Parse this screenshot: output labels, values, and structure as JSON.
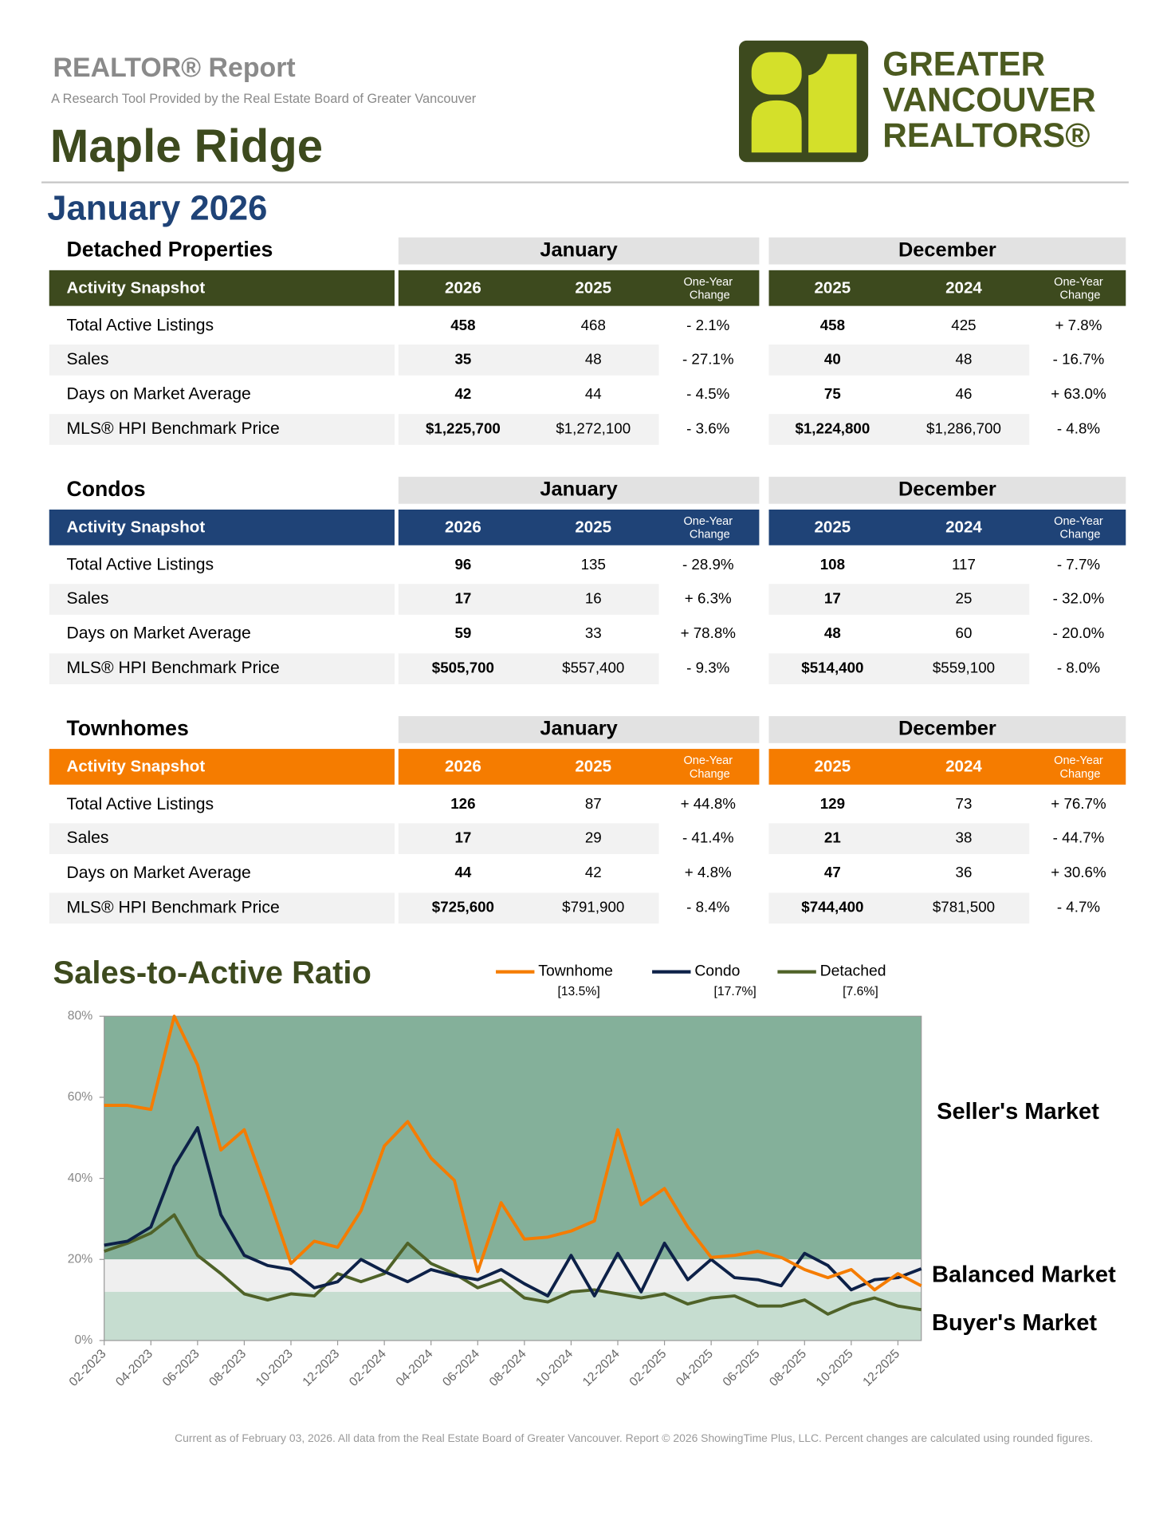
{
  "header": {
    "title": "REALTOR® Report",
    "subtitle": "A Research Tool Provided by the Real Estate Board of Greater Vancouver",
    "area": "Maple Ridge",
    "period": "January 2026"
  },
  "logo": {
    "lines": [
      "GREATER",
      "VANCOUVER",
      "REALTORS®"
    ]
  },
  "tables": [
    {
      "title": "Detached Properties",
      "color": "#3d4a1e",
      "snapshot_label": "Activity Snapshot",
      "groups": [
        {
          "label": "January",
          "columns": [
            "2026",
            "2025",
            "One-Year Change"
          ]
        },
        {
          "label": "December",
          "columns": [
            "2025",
            "2024",
            "One-Year Change"
          ]
        }
      ],
      "rows": [
        {
          "label": "Total Active Listings",
          "cells": [
            "458",
            "468",
            "- 2.1%",
            "458",
            "425",
            "+ 7.8%"
          ]
        },
        {
          "label": "Sales",
          "cells": [
            "35",
            "48",
            "- 27.1%",
            "40",
            "48",
            "- 16.7%"
          ]
        },
        {
          "label": "Days on Market Average",
          "cells": [
            "42",
            "44",
            "- 4.5%",
            "75",
            "46",
            "+ 63.0%"
          ]
        },
        {
          "label": "MLS® HPI Benchmark Price",
          "cells": [
            "$1,225,700",
            "$1,272,100",
            "- 3.6%",
            "$1,224,800",
            "$1,286,700",
            "- 4.8%"
          ]
        }
      ]
    },
    {
      "title": "Condos",
      "color": "#1f4377",
      "snapshot_label": "Activity Snapshot",
      "groups": [
        {
          "label": "January",
          "columns": [
            "2026",
            "2025",
            "One-Year Change"
          ]
        },
        {
          "label": "December",
          "columns": [
            "2025",
            "2024",
            "One-Year Change"
          ]
        }
      ],
      "rows": [
        {
          "label": "Total Active Listings",
          "cells": [
            "96",
            "135",
            "- 28.9%",
            "108",
            "117",
            "- 7.7%"
          ]
        },
        {
          "label": "Sales",
          "cells": [
            "17",
            "16",
            "+ 6.3%",
            "17",
            "25",
            "- 32.0%"
          ]
        },
        {
          "label": "Days on Market Average",
          "cells": [
            "59",
            "33",
            "+ 78.8%",
            "48",
            "60",
            "- 20.0%"
          ]
        },
        {
          "label": "MLS® HPI Benchmark Price",
          "cells": [
            "$505,700",
            "$557,400",
            "- 9.3%",
            "$514,400",
            "$559,100",
            "- 8.0%"
          ]
        }
      ]
    },
    {
      "title": "Townhomes",
      "color": "#f57c00",
      "snapshot_label": "Activity Snapshot",
      "groups": [
        {
          "label": "January",
          "columns": [
            "2026",
            "2025",
            "One-Year Change"
          ]
        },
        {
          "label": "December",
          "columns": [
            "2025",
            "2024",
            "One-Year Change"
          ]
        }
      ],
      "rows": [
        {
          "label": "Total Active Listings",
          "cells": [
            "126",
            "87",
            "+ 44.8%",
            "129",
            "73",
            "+ 76.7%"
          ]
        },
        {
          "label": "Sales",
          "cells": [
            "17",
            "29",
            "- 41.4%",
            "21",
            "38",
            "- 44.7%"
          ]
        },
        {
          "label": "Days on Market Average",
          "cells": [
            "44",
            "42",
            "+ 4.8%",
            "47",
            "36",
            "+ 30.6%"
          ]
        },
        {
          "label": "MLS® HPI Benchmark Price",
          "cells": [
            "$725,600",
            "$791,900",
            "- 8.4%",
            "$744,400",
            "$781,500",
            "- 4.7%"
          ]
        }
      ]
    }
  ],
  "chart_data": {
    "type": "line",
    "title": "Sales-to-Active Ratio",
    "categories": [
      "02-2023",
      null,
      "04-2023",
      null,
      "06-2023",
      null,
      "08-2023",
      null,
      "10-2023",
      null,
      "12-2023",
      null,
      "02-2024",
      null,
      "04-2024",
      null,
      "06-2024",
      null,
      "08-2024",
      null,
      "10-2024",
      null,
      "12-2024",
      null,
      "02-2025",
      null,
      "04-2025",
      null,
      "06-2025",
      null,
      "08-2025",
      null,
      "10-2025",
      null,
      "12-2025",
      null
    ],
    "series": [
      {
        "name": "Townhome",
        "color": "#f57c00",
        "legend_label": "[13.5%]",
        "values": [
          58,
          58,
          57,
          80,
          68,
          47,
          52,
          36,
          19,
          24.5,
          23,
          32,
          48,
          54,
          45,
          39.5,
          17,
          34,
          25,
          25.5,
          27,
          29.5,
          52,
          33.5,
          37.5,
          28,
          20.5,
          21,
          22,
          20.5,
          17.5,
          15.5,
          17.5,
          12.5,
          16.5,
          13.5
        ]
      },
      {
        "name": "Condo",
        "color": "#0d2148",
        "legend_label": "[17.7%]",
        "values": [
          23.5,
          24.5,
          28,
          43,
          52.5,
          31,
          21,
          18.5,
          17.5,
          13,
          14.5,
          20,
          17,
          14.5,
          17.5,
          16,
          15,
          17.5,
          14,
          11,
          21,
          11,
          21.5,
          12,
          24,
          15,
          20,
          15.5,
          15,
          13.5,
          21.5,
          18.5,
          12.5,
          15,
          15.5,
          17.7
        ]
      },
      {
        "name": "Detached",
        "color": "#4f6228",
        "legend_label": "[7.6%]",
        "values": [
          22,
          24,
          26.5,
          31,
          21,
          16.5,
          11.5,
          10,
          11.5,
          11,
          16.5,
          14.5,
          16.5,
          24,
          19,
          16.5,
          13,
          15,
          10.5,
          9.5,
          12,
          12.5,
          11.5,
          10.5,
          11.5,
          9,
          10.5,
          11,
          8.5,
          8.5,
          10,
          6.5,
          9,
          10.5,
          8.5,
          7.6
        ]
      }
    ],
    "ylim": [
      0,
      80
    ],
    "yticks": [
      {
        "value": 0,
        "label": "0%"
      },
      {
        "value": 20,
        "label": "20%"
      },
      {
        "value": 40,
        "label": "40%"
      },
      {
        "value": 60,
        "label": "60%"
      },
      {
        "value": 80,
        "label": "80%"
      }
    ],
    "bands": [
      {
        "label": "Seller's Market",
        "from": 20,
        "to": 80,
        "color": "#84b09a"
      },
      {
        "label": "Balanced Market",
        "from": 12,
        "to": 20,
        "color": "#efefef"
      },
      {
        "label": "Buyer's Market",
        "from": 0,
        "to": 12,
        "color": "#c6ddd0"
      }
    ]
  },
  "footer": "Current as of February 03, 2026. All data from the Real Estate Board of Greater Vancouver.  Report © 2026 ShowingTime Plus, LLC. Percent changes are calculated using rounded figures."
}
